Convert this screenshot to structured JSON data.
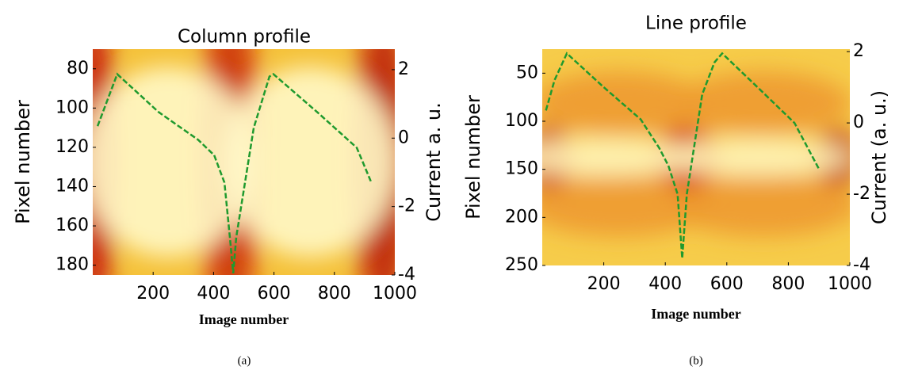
{
  "chart_data": [
    {
      "type": "heatmap-line",
      "title": "Column profile",
      "caption": "(a)",
      "xlabel": "Image number",
      "ylabel": "Pixel number",
      "y2label": "Current  a. u.",
      "xlim": [
        0,
        1000
      ],
      "xticks": [
        200,
        400,
        600,
        800,
        1000
      ],
      "ylim": [
        185,
        70
      ],
      "yticks": [
        80,
        100,
        120,
        140,
        160,
        180
      ],
      "y2lim": [
        -4,
        2.6
      ],
      "y2ticks": [
        2,
        0,
        -2,
        -4
      ],
      "series": [
        {
          "color": "#1f9a2e",
          "axis": "y2",
          "x": [
            16,
            81,
            218,
            349,
            402,
            436,
            454,
            465,
            475,
            533,
            585,
            598,
            743,
            874,
            921
          ],
          "values": [
            0.35,
            1.87,
            0.76,
            -0.05,
            -0.5,
            -1.3,
            -2.9,
            -3.95,
            -2.9,
            0.3,
            1.8,
            1.87,
            0.76,
            -0.28,
            -1.27
          ]
        }
      ]
    },
    {
      "type": "heatmap-line",
      "title": "Line profile",
      "caption": "(b)",
      "xlabel": "Image number",
      "ylabel": "Pixel number",
      "y2label": "Current (a. u.)",
      "xlim": [
        0,
        1000
      ],
      "xticks": [
        200,
        400,
        600,
        800,
        1000
      ],
      "ylim": [
        250,
        25
      ],
      "yticks": [
        50,
        100,
        150,
        200,
        250
      ],
      "y2lim": [
        -4,
        2.07
      ],
      "y2ticks": [
        2,
        0,
        -2,
        -4
      ],
      "series": [
        {
          "color": "#1f9a2e",
          "axis": "y2",
          "x": [
            12,
            40,
            80,
            200,
            320,
            380,
            410,
            440,
            455,
            470,
            520,
            560,
            585,
            700,
            820,
            900
          ],
          "values": [
            0.35,
            1.2,
            1.95,
            1.0,
            0.1,
            -0.7,
            -1.2,
            -2.0,
            -3.8,
            -2.0,
            0.8,
            1.7,
            1.95,
            1.0,
            0.0,
            -1.3
          ]
        }
      ]
    }
  ]
}
